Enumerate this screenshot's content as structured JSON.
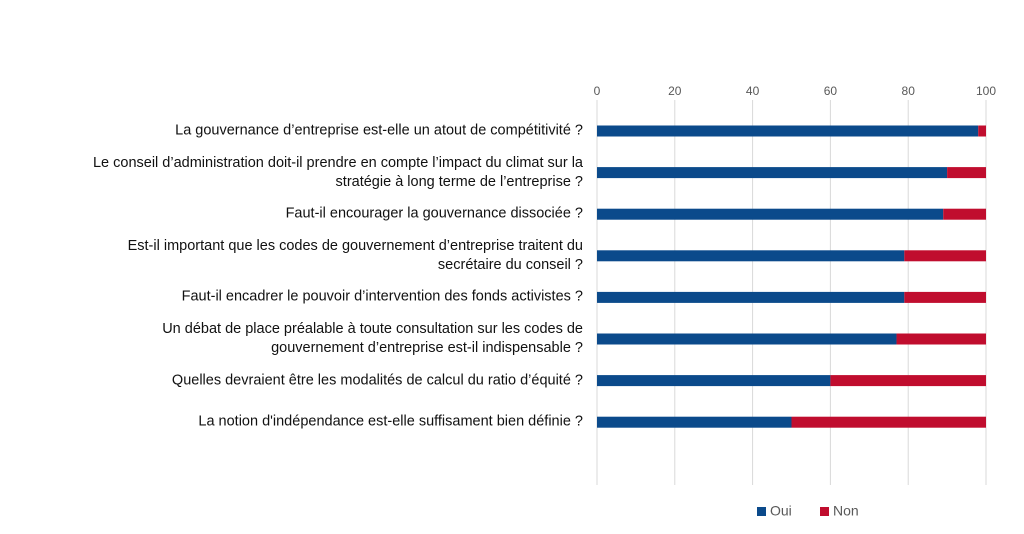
{
  "chart_data": {
    "type": "stacked-bar-horizontal",
    "categories": [
      "La gouvernance d’entreprise est-elle un atout de compétitivité ?",
      "Le conseil d’administration doit-il prendre en compte l’impact du climat sur la stratégie à long terme de l’entreprise ?",
      "Faut-il encourager la gouvernance dissociée ?",
      "Est-il important que les codes de gouvernement d’entreprise traitent du secrétaire du conseil ?",
      "Faut-il encadrer le pouvoir d’intervention des fonds activistes ?",
      "Un débat de place préalable à toute consultation sur les codes de gouvernement d’entreprise est-il indispensable ?",
      "Quelles devraient être les modalités de calcul du ratio d’équité ?",
      "La notion d'indépendance est-elle suffisament bien définie ?"
    ],
    "series": [
      {
        "name": "Oui",
        "color": "#0b4a8b",
        "values": [
          98,
          90,
          89,
          79,
          79,
          77,
          60,
          50
        ]
      },
      {
        "name": "Non",
        "color": "#c00d2e",
        "values": [
          2,
          10,
          11,
          21,
          21,
          23,
          40,
          50
        ]
      }
    ],
    "xlim": [
      0,
      100
    ],
    "xticks": [
      0,
      20,
      40,
      60,
      80,
      100
    ],
    "grid": true,
    "legend": "bottom"
  }
}
